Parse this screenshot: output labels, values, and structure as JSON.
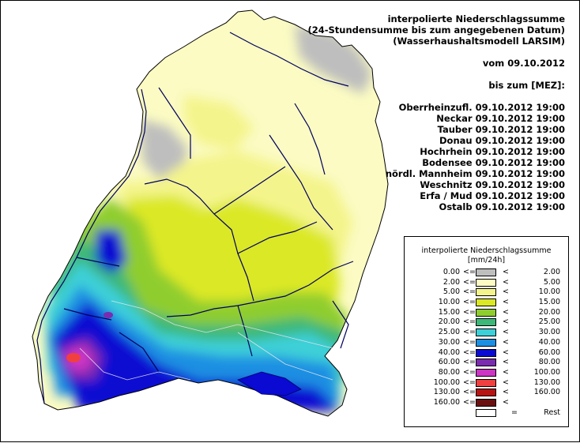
{
  "header": {
    "lines": [
      "interpolierte Niederschlagssumme",
      "(24-Stundensumme bis zum angegebenen Datum)",
      "(Wasserhaushaltsmodell LARSIM)"
    ],
    "date_line": "vom 09.10.2012",
    "until_line": "bis zum [MEZ]:"
  },
  "regions": [
    {
      "name": "Oberrheinzufl.",
      "time": "09.10.2012 19:00"
    },
    {
      "name": "Neckar",
      "time": "09.10.2012 19:00"
    },
    {
      "name": "Tauber",
      "time": "09.10.2012 19:00"
    },
    {
      "name": "Donau",
      "time": "09.10.2012 19:00"
    },
    {
      "name": "Hochrhein",
      "time": "09.10.2012 19:00"
    },
    {
      "name": "Bodensee",
      "time": "09.10.2012 19:00"
    },
    {
      "name": "nördl. Mannheim",
      "time": "09.10.2012 19:00"
    },
    {
      "name": "Weschnitz",
      "time": "09.10.2012 19:00"
    },
    {
      "name": "Erfa / Mud",
      "time": "09.10.2012 19:00"
    },
    {
      "name": "Ostalb",
      "time": "09.10.2012 19:00"
    }
  ],
  "legend": {
    "title": "interpolierte Niederschlagssumme",
    "unit": "[mm/24h]",
    "le_sym": "<=",
    "lt_sym": "<",
    "classes": [
      {
        "from": "0.00",
        "to": "2.00",
        "color": "#bebebe"
      },
      {
        "from": "2.00",
        "to": "5.00",
        "color": "#fbfbc3"
      },
      {
        "from": "5.00",
        "to": "10.00",
        "color": "#f4f48c"
      },
      {
        "from": "10.00",
        "to": "15.00",
        "color": "#dbe825"
      },
      {
        "from": "15.00",
        "to": "20.00",
        "color": "#8fcd2e"
      },
      {
        "from": "20.00",
        "to": "25.00",
        "color": "#3cb878"
      },
      {
        "from": "25.00",
        "to": "30.00",
        "color": "#3dd0d8"
      },
      {
        "from": "30.00",
        "to": "40.00",
        "color": "#1c8fe2"
      },
      {
        "from": "40.00",
        "to": "60.00",
        "color": "#0a0ad2"
      },
      {
        "from": "60.00",
        "to": "80.00",
        "color": "#7b2bb0"
      },
      {
        "from": "80.00",
        "to": "100.00",
        "color": "#cd35c4"
      },
      {
        "from": "100.00",
        "to": "130.00",
        "color": "#f04040"
      },
      {
        "from": "130.00",
        "to": "160.00",
        "color": "#b81414"
      },
      {
        "from": "160.00",
        "to": "",
        "color": "#6b1010"
      }
    ],
    "rest": {
      "eq": "=",
      "label": "Rest",
      "color": "#ffffff"
    }
  }
}
